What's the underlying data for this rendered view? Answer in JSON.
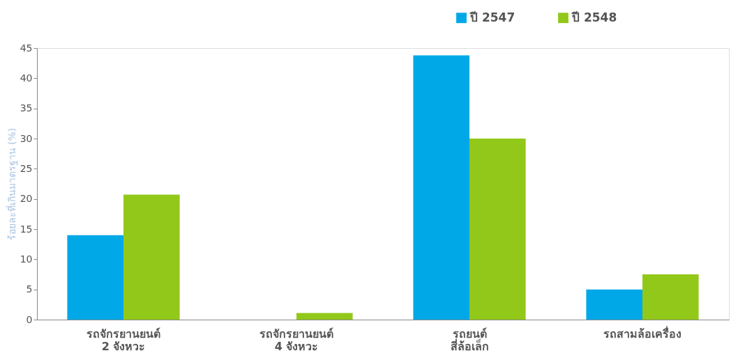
{
  "chart_data": {
    "type": "bar",
    "ylabel": "ร้อยละที่เกินมาตรฐาน (%)",
    "categories": [
      "รถจักรยานยนต์\n2 จังหวะ",
      "รถจักรยานยนต์\n4 จังหวะ",
      "รถยนต์\nสี่ล้อเล็ก",
      "รถสามล้อเครื่อง"
    ],
    "series": [
      {
        "name": "ปี 2547",
        "color": "#00a8e8",
        "values": [
          14.0,
          0,
          43.8,
          5.0
        ]
      },
      {
        "name": "ปี 2548",
        "color": "#92c81a",
        "values": [
          20.7,
          1.1,
          30.0,
          7.5
        ]
      }
    ],
    "ylim": [
      0,
      45
    ],
    "yticks": [
      0,
      5,
      10,
      15,
      20,
      25,
      30,
      35,
      40,
      45
    ],
    "grid": false,
    "legend": "top right"
  }
}
